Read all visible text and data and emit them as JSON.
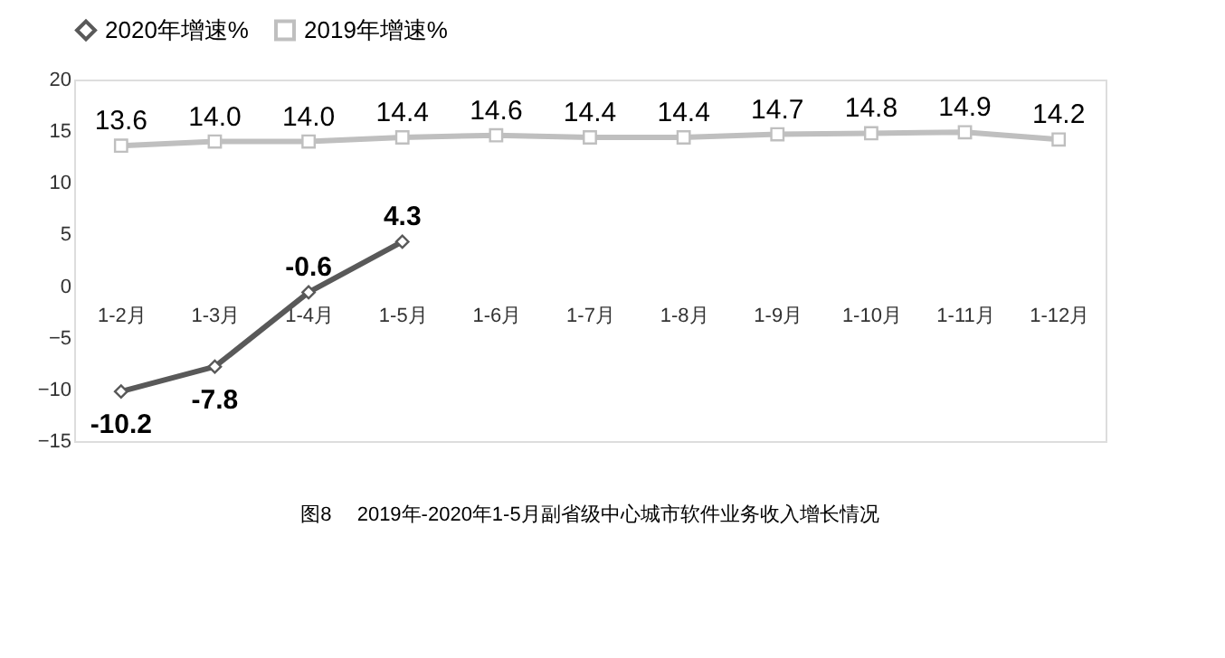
{
  "chart_data": {
    "type": "line",
    "categories": [
      "1-2月",
      "1-3月",
      "1-4月",
      "1-5月",
      "1-6月",
      "1-7月",
      "1-8月",
      "1-9月",
      "1-10月",
      "1-11月",
      "1-12月"
    ],
    "series": [
      {
        "name": "2020年增速%",
        "color": "#595959",
        "marker": "diamond",
        "values": [
          -10.2,
          -7.8,
          -0.6,
          4.3,
          null,
          null,
          null,
          null,
          null,
          null,
          null
        ],
        "value_labels": [
          "-10.2",
          "-7.8",
          "-0.6",
          "4.3",
          null,
          null,
          null,
          null,
          null,
          null,
          null
        ]
      },
      {
        "name": "2019年增速%",
        "color": "#bfbfbf",
        "marker": "square",
        "values": [
          13.6,
          14.0,
          14.0,
          14.4,
          14.6,
          14.4,
          14.4,
          14.7,
          14.8,
          14.9,
          14.2
        ],
        "value_labels": [
          "13.6",
          "14.0",
          "14.0",
          "14.4",
          "14.6",
          "14.4",
          "14.4",
          "14.7",
          "14.8",
          "14.9",
          "14.2"
        ]
      }
    ],
    "ylim": [
      -15,
      20
    ],
    "yticks": [
      -15,
      -10,
      -5,
      0,
      5,
      10,
      15,
      20
    ],
    "grid": false,
    "legend": "top",
    "data_labels": true,
    "annotations": [
      "图8　 2019年-2020年1-5月副省级中心城市软件业务收入增长情况"
    ]
  }
}
